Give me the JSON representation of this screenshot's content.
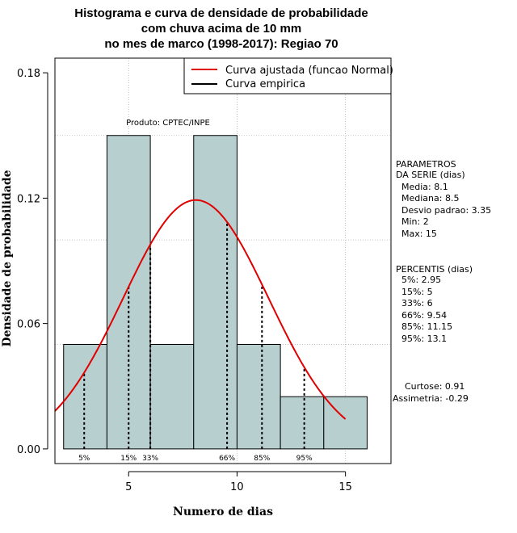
{
  "chart_data": {
    "type": "bar",
    "title_lines": [
      "Histograma e curva de densidade de probabilidade",
      "com chuva acima de 10 mm",
      "no mes de marco (1998-2017): Regiao 70"
    ],
    "xlabel": "Numero de dias",
    "ylabel": "Densidade de probabilidade",
    "xlim": [
      1.6,
      17.1
    ],
    "ylim": [
      -0.007,
      0.187
    ],
    "x_ticks": [
      5,
      10,
      15
    ],
    "x_tick_labels": [
      "5",
      "10",
      "15"
    ],
    "y_ticks": [
      0.0,
      0.06,
      0.12,
      0.18
    ],
    "y_tick_labels": [
      "0.00",
      "0.06",
      "0.12",
      "0.18"
    ],
    "grid_y": [
      0.05,
      0.1,
      0.15
    ],
    "grid_x": [
      5,
      10,
      15
    ],
    "histogram": {
      "bin_edges": [
        2,
        4,
        6,
        8,
        10,
        12,
        14,
        16
      ],
      "density": [
        0.05,
        0.15,
        0.05,
        0.15,
        0.05,
        0.025,
        0.025
      ],
      "fill_color": "#b7cfcf",
      "edge_color": "#000000"
    },
    "normal_curve": {
      "label": "Curva ajustada (funcao Normal)",
      "mean": 8.1,
      "sd": 3.35,
      "x_range": [
        1.6,
        15
      ],
      "color": "#e00000"
    },
    "empirical_curve": {
      "label": "Curva empirica",
      "color": "#000000"
    },
    "percentiles": [
      {
        "label": "5%",
        "value": 2.95
      },
      {
        "label": "15%",
        "value": 5
      },
      {
        "label": "33%",
        "value": 6
      },
      {
        "label": "66%",
        "value": 9.54
      },
      {
        "label": "85%",
        "value": 11.15
      },
      {
        "label": "95%",
        "value": 13.1
      }
    ],
    "annotations": {
      "product": "Produto: CPTEC/INPE"
    },
    "parameters_block": [
      "PARAMETROS",
      "DA SERIE (dias)",
      "  Media: 8.1",
      "  Mediana: 8.5",
      "  Desvio padrao: 3.35",
      "  Min: 2",
      "  Max: 15"
    ],
    "percentis_block": [
      "PERCENTIS (dias)",
      "  5%: 2.95",
      "  15%: 5",
      "  33%: 6",
      "  66%: 9.54",
      "  85%: 11.15",
      "  95%: 13.1"
    ],
    "shape_block": [
      "  Curtose: 0.91",
      "Assimetria: -0.29"
    ]
  }
}
